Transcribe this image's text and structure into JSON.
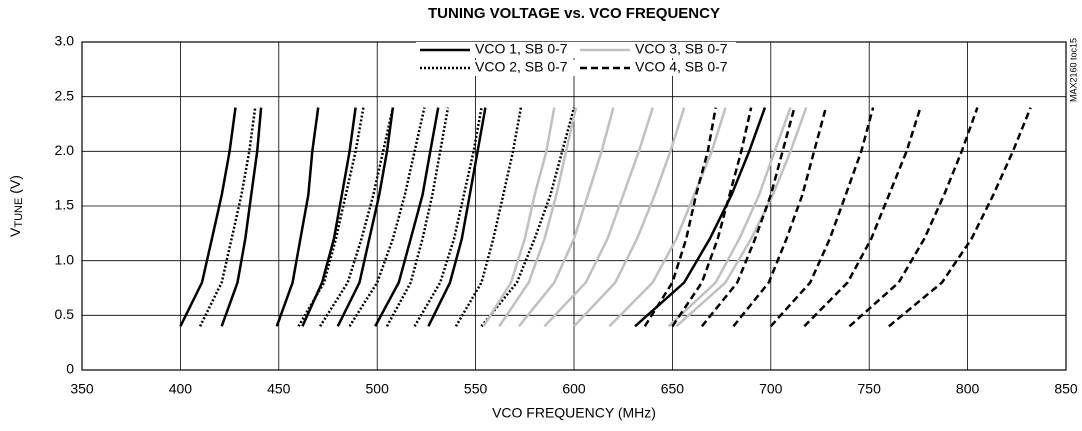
{
  "chart_data": {
    "type": "line",
    "title": "TUNING VOLTAGE vs. VCO FREQUENCY",
    "x_label": "VCO FREQUENCY (MHz)",
    "y_label": {
      "main": "V",
      "sub": "TUNE",
      "unit": "(V)"
    },
    "side_note": "MAX2160 toc15",
    "xlim": [
      350,
      850
    ],
    "xticks": [
      350,
      400,
      450,
      500,
      550,
      600,
      650,
      700,
      750,
      800,
      850
    ],
    "ylim": [
      0,
      3
    ],
    "yticks": [
      {
        "value": 3,
        "label": "3.0"
      },
      2.5,
      {
        "value": 2,
        "label": "2.0"
      },
      1.5,
      {
        "value": 1,
        "label": "1.0"
      },
      0.5,
      0
    ],
    "grid": true,
    "series": [
      {
        "name": "VCO 1, SB 0-7",
        "color": "#000000",
        "dash": "none",
        "x": [
          400,
          411,
          416,
          421,
          425,
          428,
          null,
          421,
          429,
          433,
          436,
          439,
          441,
          null,
          449,
          457,
          461,
          465,
          467,
          470,
          null,
          462,
          472,
          478,
          482,
          486,
          489,
          null,
          480,
          491,
          496,
          501,
          505,
          508,
          null,
          499,
          511,
          517,
          523,
          527,
          531,
          null,
          526,
          537,
          543,
          547,
          551,
          555,
          null,
          631,
          656,
          669,
          680,
          689,
          697
        ],
        "values": [
          0.4,
          0.8,
          1.2,
          1.6,
          2.0,
          2.4,
          null,
          0.4,
          0.8,
          1.2,
          1.6,
          2.0,
          2.4,
          null,
          0.4,
          0.8,
          1.2,
          1.6,
          2.0,
          2.4,
          null,
          0.4,
          0.8,
          1.2,
          1.6,
          2.0,
          2.4,
          null,
          0.4,
          0.8,
          1.2,
          1.6,
          2.0,
          2.4,
          null,
          0.4,
          0.8,
          1.2,
          1.6,
          2.0,
          2.4,
          null,
          0.4,
          0.8,
          1.2,
          1.6,
          2.0,
          2.4,
          null,
          0.4,
          0.8,
          1.2,
          1.6,
          2.0,
          2.4
        ]
      },
      {
        "name": "VCO 2, SB 0-7",
        "color": "#000000",
        "dash": "2,2",
        "x": [
          410,
          421,
          426,
          431,
          435,
          438,
          null,
          460,
          473,
          479,
          484,
          489,
          493,
          null,
          471,
          485,
          492,
          498,
          503,
          508,
          null,
          486,
          500,
          508,
          514,
          519,
          524,
          null,
          505,
          517,
          523,
          528,
          532,
          536,
          null,
          519,
          532,
          539,
          544,
          549,
          553,
          null,
          540,
          553,
          559,
          564,
          569,
          573,
          null,
          553,
          571,
          580,
          588,
          594,
          600
        ],
        "values": [
          0.4,
          0.8,
          1.2,
          1.6,
          2.0,
          2.4,
          null,
          0.4,
          0.8,
          1.2,
          1.6,
          2.0,
          2.4,
          null,
          0.4,
          0.8,
          1.2,
          1.6,
          2.0,
          2.4,
          null,
          0.4,
          0.8,
          1.2,
          1.6,
          2.0,
          2.4,
          null,
          0.4,
          0.8,
          1.2,
          1.6,
          2.0,
          2.4,
          null,
          0.4,
          0.8,
          1.2,
          1.6,
          2.0,
          2.4,
          null,
          0.4,
          0.8,
          1.2,
          1.6,
          2.0,
          2.4,
          null,
          0.4,
          0.8,
          1.2,
          1.6,
          2.0,
          2.4
        ]
      },
      {
        "name": "VCO 3, SB 0-7",
        "color": "#c0c0c0",
        "dash": "none",
        "x": [
          554,
          568,
          575,
          580,
          586,
          590,
          null,
          562,
          577,
          585,
          591,
          596,
          601,
          null,
          572,
          590,
          600,
          607,
          614,
          620,
          null,
          585,
          606,
          617,
          625,
          633,
          640,
          null,
          600,
          621,
          632,
          641,
          649,
          656,
          null,
          618,
          640,
          652,
          661,
          670,
          677,
          null,
          648,
          672,
          684,
          694,
          702,
          710,
          null,
          652,
          677,
          690,
          701,
          710,
          718
        ],
        "values": [
          0.4,
          0.8,
          1.2,
          1.6,
          2.0,
          2.4,
          null,
          0.4,
          0.8,
          1.2,
          1.6,
          2.0,
          2.4,
          null,
          0.4,
          0.8,
          1.2,
          1.6,
          2.0,
          2.4,
          null,
          0.4,
          0.8,
          1.2,
          1.6,
          2.0,
          2.4,
          null,
          0.4,
          0.8,
          1.2,
          1.6,
          2.0,
          2.4,
          null,
          0.4,
          0.8,
          1.2,
          1.6,
          2.0,
          2.4,
          null,
          0.4,
          0.8,
          1.2,
          1.6,
          2.0,
          2.4,
          null,
          0.4,
          0.8,
          1.2,
          1.6,
          2.0,
          2.4
        ]
      },
      {
        "name": "VCO 4, SB 0-7",
        "color": "#000000",
        "dash": "7,4",
        "x": [
          636,
          650,
          657,
          662,
          668,
          672,
          null,
          650,
          665,
          673,
          679,
          685,
          690,
          null,
          665,
          683,
          692,
          700,
          706,
          712,
          null,
          681,
          699,
          708,
          716,
          722,
          728,
          null,
          700,
          720,
          730,
          738,
          746,
          752,
          null,
          717,
          739,
          751,
          760,
          769,
          776,
          null,
          740,
          765,
          778,
          788,
          797,
          805,
          null,
          760,
          787,
          802,
          813,
          823,
          832
        ],
        "values": [
          0.4,
          0.8,
          1.2,
          1.6,
          2.0,
          2.4,
          null,
          0.4,
          0.8,
          1.2,
          1.6,
          2.0,
          2.4,
          null,
          0.4,
          0.8,
          1.2,
          1.6,
          2.0,
          2.4,
          null,
          0.4,
          0.8,
          1.2,
          1.6,
          2.0,
          2.4,
          null,
          0.4,
          0.8,
          1.2,
          1.6,
          2.0,
          2.4,
          null,
          0.4,
          0.8,
          1.2,
          1.6,
          2.0,
          2.4,
          null,
          0.4,
          0.8,
          1.2,
          1.6,
          2.0,
          2.4,
          null,
          0.4,
          0.8,
          1.2,
          1.6,
          2.0,
          2.4
        ]
      }
    ]
  }
}
